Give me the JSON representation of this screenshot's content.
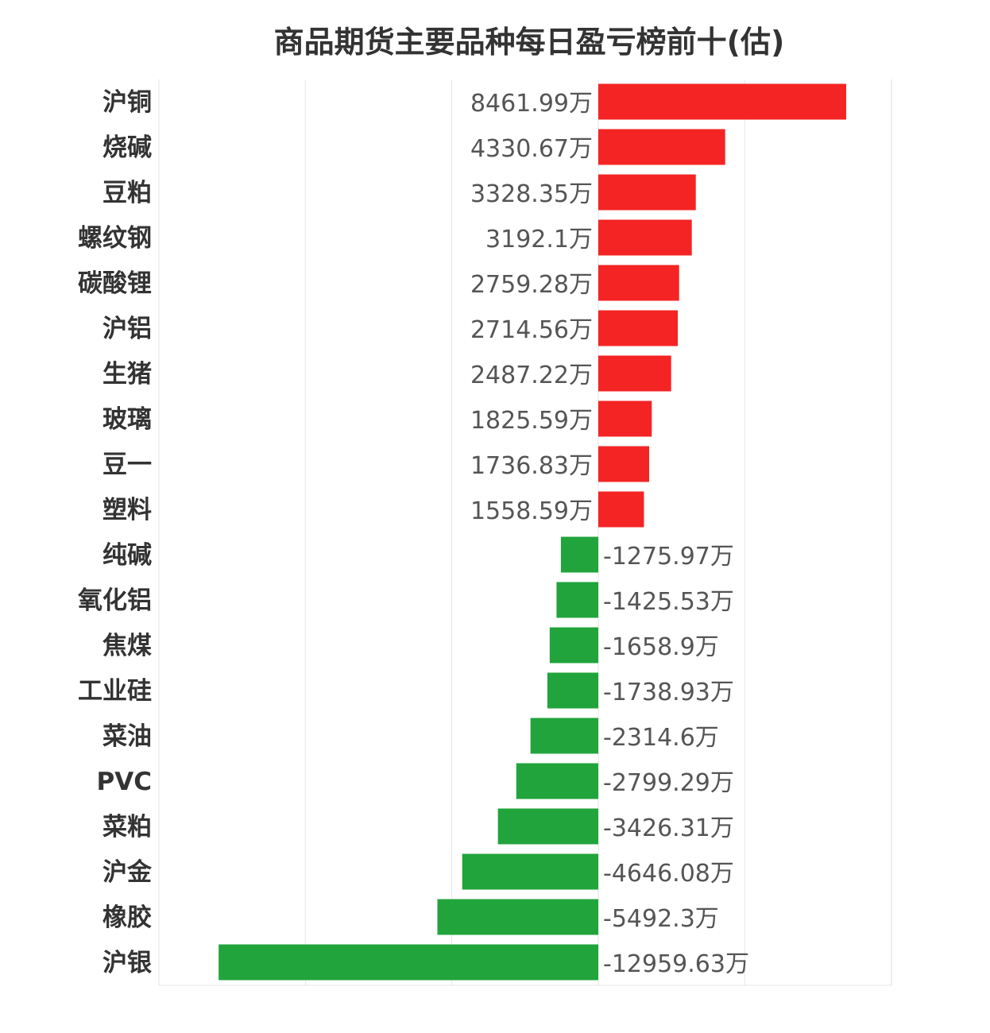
{
  "title": "商品期货主要品种每日盈亏榜前十(估)",
  "unit": "万",
  "colors": {
    "positive": "#f42424",
    "negative": "#21a43b",
    "grid": "#e6e6e6"
  },
  "chart_data": {
    "type": "bar",
    "orientation": "horizontal",
    "title": "商品期货主要品种每日盈亏榜前十(估)",
    "xlim": [
      -15000,
      10000
    ],
    "grid": true,
    "categories": [
      "沪铜",
      "烧碱",
      "豆粕",
      "螺纹钢",
      "碳酸锂",
      "沪铝",
      "生猪",
      "玻璃",
      "豆一",
      "塑料",
      "纯碱",
      "氧化铝",
      "焦煤",
      "工业硅",
      "菜油",
      "PVC",
      "菜粕",
      "沪金",
      "橡胶",
      "沪银"
    ],
    "values": [
      8461.99,
      4330.67,
      3328.35,
      3192.1,
      2759.28,
      2714.56,
      2487.22,
      1825.59,
      1736.83,
      1558.59,
      -1275.97,
      -1425.53,
      -1658.9,
      -1738.93,
      -2314.6,
      -2799.29,
      -3426.31,
      -4646.08,
      -5492.3,
      -12959.63
    ],
    "value_labels": [
      "8461.99万",
      "4330.67万",
      "3328.35万",
      "3192.1万",
      "2759.28万",
      "2714.56万",
      "2487.22万",
      "1825.59万",
      "1736.83万",
      "1558.59万",
      "-1275.97万",
      "-1425.53万",
      "-1658.9万",
      "-1738.93万",
      "-2314.6万",
      "-2799.29万",
      "-3426.31万",
      "-4646.08万",
      "-5492.3万",
      "-12959.63万"
    ]
  }
}
